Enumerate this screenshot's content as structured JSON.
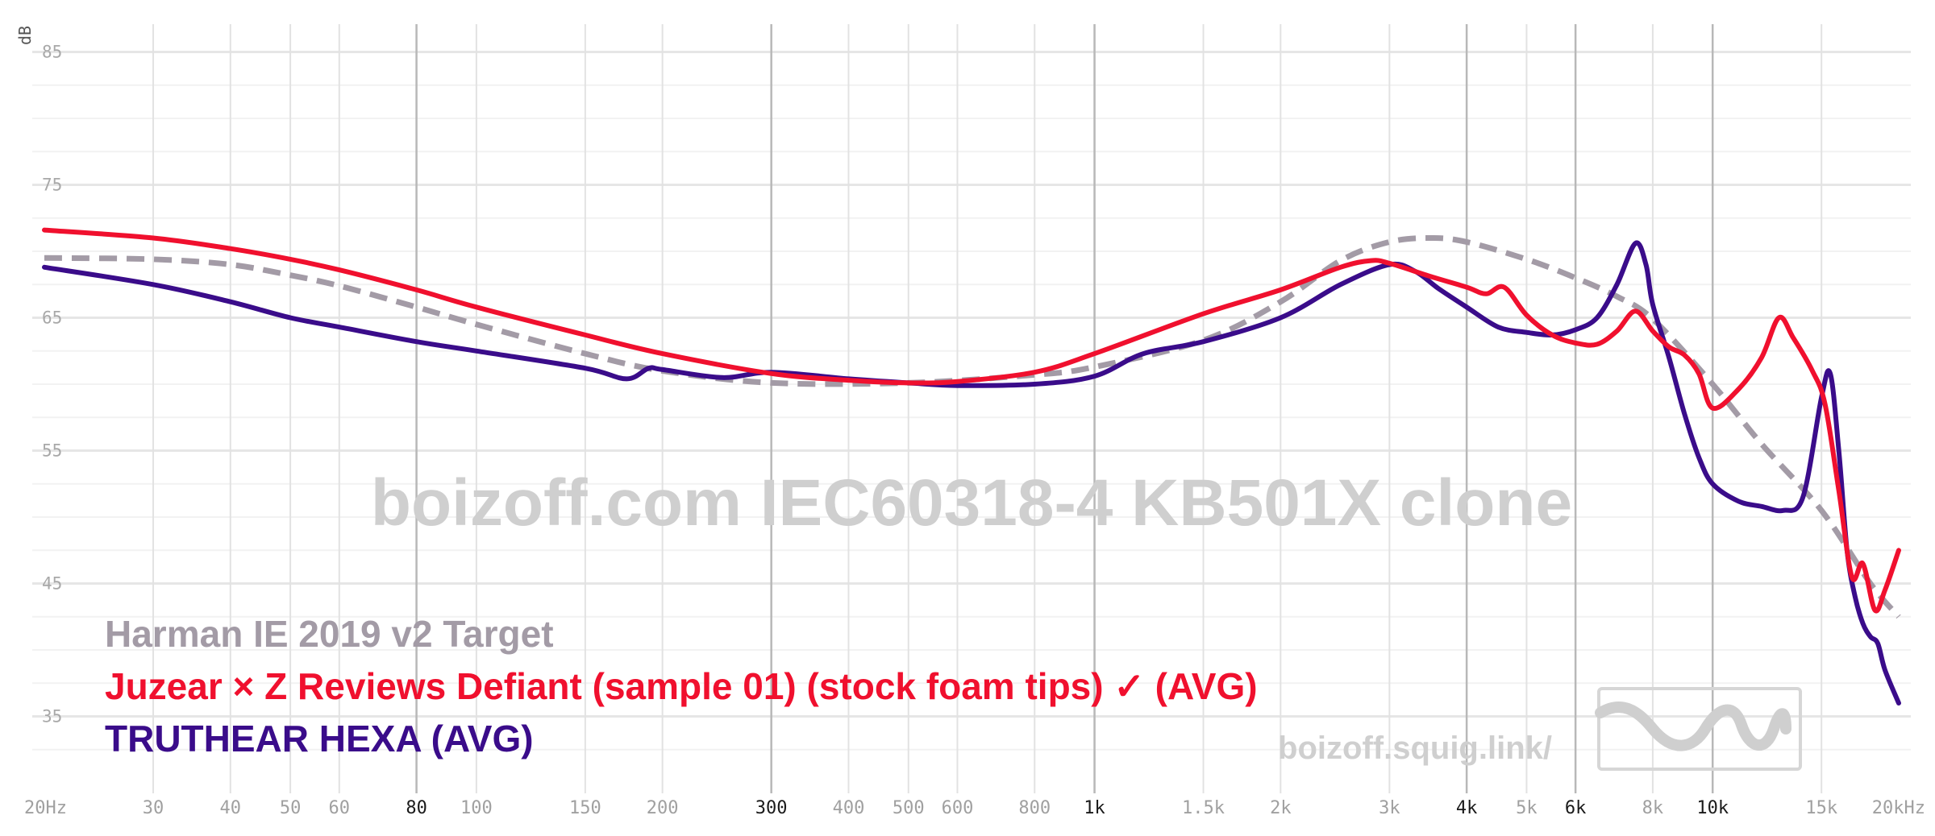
{
  "chart_data": {
    "type": "line",
    "title": "boizoff.com IEC60318-4 KB501X clone",
    "watermark_link": "boizoff.squig.link/",
    "ylabel": "dB",
    "xscale": "log",
    "xlim": [
      20,
      20000
    ],
    "ylim": [
      30,
      86
    ],
    "yticks": [
      35,
      45,
      55,
      65,
      75,
      85
    ],
    "xticks": [
      {
        "v": 20,
        "label": "20Hz"
      },
      {
        "v": 30,
        "label": "30"
      },
      {
        "v": 40,
        "label": "40"
      },
      {
        "v": 50,
        "label": "50"
      },
      {
        "v": 60,
        "label": "60"
      },
      {
        "v": 80,
        "label": "80",
        "major": true
      },
      {
        "v": 100,
        "label": "100"
      },
      {
        "v": 150,
        "label": "150"
      },
      {
        "v": 200,
        "label": "200"
      },
      {
        "v": 300,
        "label": "300",
        "major": true
      },
      {
        "v": 400,
        "label": "400"
      },
      {
        "v": 500,
        "label": "500"
      },
      {
        "v": 600,
        "label": "600"
      },
      {
        "v": 800,
        "label": "800"
      },
      {
        "v": 1000,
        "label": "1k",
        "major": true
      },
      {
        "v": 1500,
        "label": "1.5k"
      },
      {
        "v": 2000,
        "label": "2k"
      },
      {
        "v": 3000,
        "label": "3k"
      },
      {
        "v": 4000,
        "label": "4k",
        "major": true
      },
      {
        "v": 5000,
        "label": "5k"
      },
      {
        "v": 6000,
        "label": "6k",
        "major": true
      },
      {
        "v": 8000,
        "label": "8k"
      },
      {
        "v": 10000,
        "label": "10k",
        "major": true
      },
      {
        "v": 15000,
        "label": "15k"
      },
      {
        "v": 20000,
        "label": "20kHz"
      }
    ],
    "grid": true,
    "legend_position": "bottom-left",
    "series": [
      {
        "name": "Harman IE 2019 v2 Target",
        "color": "#a39ba6",
        "dashed": true,
        "points": [
          [
            20,
            69.5
          ],
          [
            30,
            69.4
          ],
          [
            40,
            69.0
          ],
          [
            50,
            68.2
          ],
          [
            60,
            67.4
          ],
          [
            80,
            65.8
          ],
          [
            100,
            64.5
          ],
          [
            150,
            62.3
          ],
          [
            200,
            61.0
          ],
          [
            300,
            60.1
          ],
          [
            500,
            60.1
          ],
          [
            800,
            60.7
          ],
          [
            1000,
            61.3
          ],
          [
            1500,
            63.3
          ],
          [
            2000,
            66.2
          ],
          [
            2500,
            69.3
          ],
          [
            3000,
            70.7
          ],
          [
            3500,
            71.0
          ],
          [
            4000,
            70.7
          ],
          [
            5000,
            69.4
          ],
          [
            6000,
            68.0
          ],
          [
            7000,
            66.6
          ],
          [
            8000,
            64.9
          ],
          [
            10000,
            60.0
          ],
          [
            12000,
            55.5
          ],
          [
            15000,
            50.5
          ],
          [
            18000,
            45.0
          ],
          [
            20000,
            42.5
          ]
        ]
      },
      {
        "name": "Juzear × Z Reviews Defiant (sample 01) (stock foam tips) ✓ (AVG)",
        "color": "#f0102e",
        "dashed": false,
        "points": [
          [
            20,
            71.6
          ],
          [
            30,
            71.0
          ],
          [
            40,
            70.2
          ],
          [
            50,
            69.4
          ],
          [
            60,
            68.6
          ],
          [
            80,
            67.1
          ],
          [
            100,
            65.8
          ],
          [
            150,
            63.7
          ],
          [
            200,
            62.3
          ],
          [
            300,
            60.8
          ],
          [
            400,
            60.3
          ],
          [
            500,
            60.1
          ],
          [
            600,
            60.2
          ],
          [
            800,
            60.9
          ],
          [
            1000,
            62.3
          ],
          [
            1500,
            65.3
          ],
          [
            2000,
            67.1
          ],
          [
            2500,
            68.8
          ],
          [
            2800,
            69.3
          ],
          [
            3000,
            69.1
          ],
          [
            3500,
            68.1
          ],
          [
            4000,
            67.3
          ],
          [
            4300,
            66.8
          ],
          [
            4600,
            67.3
          ],
          [
            5000,
            65.2
          ],
          [
            5500,
            63.7
          ],
          [
            6000,
            63.1
          ],
          [
            6500,
            63.0
          ],
          [
            7000,
            64.0
          ],
          [
            7500,
            65.5
          ],
          [
            8000,
            64.0
          ],
          [
            8500,
            62.8
          ],
          [
            9000,
            62.2
          ],
          [
            9500,
            60.8
          ],
          [
            10000,
            58.2
          ],
          [
            11000,
            59.6
          ],
          [
            12000,
            62.0
          ],
          [
            12800,
            65.0
          ],
          [
            13500,
            63.5
          ],
          [
            14500,
            61.0
          ],
          [
            15200,
            58.5
          ],
          [
            16000,
            52.0
          ],
          [
            16800,
            45.5
          ],
          [
            17500,
            46.5
          ],
          [
            18300,
            43.0
          ],
          [
            19000,
            44.5
          ],
          [
            20000,
            47.5
          ]
        ]
      },
      {
        "name": "TRUTHEAR HEXA (AVG)",
        "color": "#3a0c8a",
        "dashed": false,
        "points": [
          [
            20,
            68.8
          ],
          [
            30,
            67.5
          ],
          [
            40,
            66.2
          ],
          [
            50,
            65.0
          ],
          [
            60,
            64.3
          ],
          [
            80,
            63.2
          ],
          [
            100,
            62.5
          ],
          [
            150,
            61.2
          ],
          [
            175,
            60.4
          ],
          [
            190,
            61.2
          ],
          [
            200,
            61.1
          ],
          [
            250,
            60.5
          ],
          [
            300,
            60.9
          ],
          [
            400,
            60.4
          ],
          [
            500,
            60.1
          ],
          [
            600,
            59.9
          ],
          [
            800,
            60.0
          ],
          [
            1000,
            60.6
          ],
          [
            1200,
            62.3
          ],
          [
            1500,
            63.2
          ],
          [
            2000,
            65.0
          ],
          [
            2500,
            67.5
          ],
          [
            3000,
            69.0
          ],
          [
            3300,
            68.5
          ],
          [
            3600,
            67.2
          ],
          [
            4000,
            65.8
          ],
          [
            4500,
            64.3
          ],
          [
            5000,
            63.9
          ],
          [
            5500,
            63.7
          ],
          [
            6000,
            64.1
          ],
          [
            6500,
            65.0
          ],
          [
            7000,
            67.5
          ],
          [
            7500,
            70.6
          ],
          [
            7800,
            69.0
          ],
          [
            8000,
            66.0
          ],
          [
            8500,
            62.0
          ],
          [
            9000,
            57.8
          ],
          [
            9500,
            54.5
          ],
          [
            10000,
            52.5
          ],
          [
            11000,
            51.2
          ],
          [
            12000,
            50.8
          ],
          [
            13000,
            50.5
          ],
          [
            14000,
            51.5
          ],
          [
            15000,
            59.0
          ],
          [
            15500,
            60.8
          ],
          [
            16000,
            55.0
          ],
          [
            16500,
            47.5
          ],
          [
            17000,
            44.0
          ],
          [
            17500,
            42.0
          ],
          [
            18000,
            41.0
          ],
          [
            18500,
            40.5
          ],
          [
            19000,
            38.5
          ],
          [
            20000,
            36.0
          ]
        ]
      }
    ]
  },
  "legend": {
    "items": [
      {
        "label": "Harman IE 2019 v2 Target",
        "color": "#a39ba6"
      },
      {
        "label": "Juzear × Z Reviews Defiant (sample 01) (stock foam tips) ✓ (AVG)",
        "color": "#f0102e"
      },
      {
        "label": "TRUTHEAR HEXA (AVG)",
        "color": "#3a0c8a"
      }
    ]
  }
}
